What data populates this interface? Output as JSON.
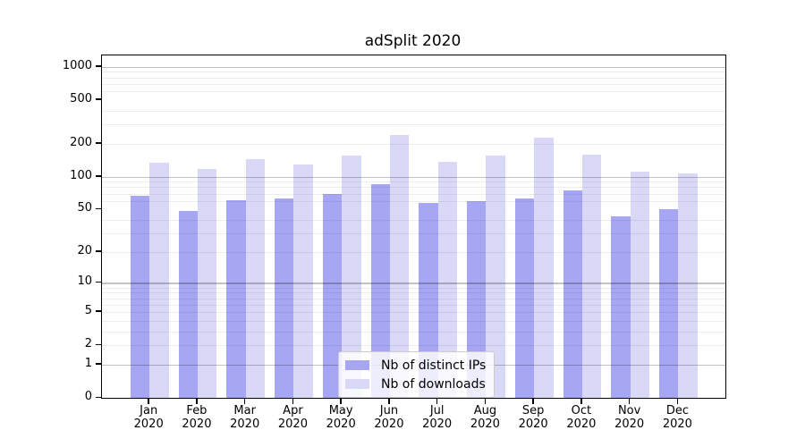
{
  "background": "#ffffff",
  "chart_data": {
    "type": "bar",
    "title": "adSplit 2020",
    "categories": [
      "Jan",
      "Feb",
      "Mar",
      "Apr",
      "May",
      "Jun",
      "Jul",
      "Aug",
      "Sep",
      "Oct",
      "Nov",
      "Dec"
    ],
    "category_year": "2020",
    "series": [
      {
        "name": "Nb of distinct IPs",
        "color": "#a6a6f2",
        "values": [
          67,
          48,
          61,
          63,
          70,
          85,
          57,
          60,
          63,
          75,
          43,
          50
        ]
      },
      {
        "name": "Nb of downloads",
        "color": "#d9d9f7",
        "values": [
          134,
          118,
          146,
          130,
          155,
          242,
          137,
          155,
          228,
          158,
          111,
          107
        ]
      }
    ],
    "yscale": "log1p",
    "ylim": [
      0,
      1267
    ],
    "y_ticks": [
      1000,
      500,
      200,
      100,
      50,
      20,
      10,
      5,
      2,
      1,
      0
    ],
    "y_major_gridlines": [
      1,
      10,
      100,
      1000
    ],
    "y_minor_gridlines": [
      2,
      3,
      4,
      5,
      6,
      7,
      8,
      9,
      20,
      30,
      40,
      60,
      70,
      80,
      90,
      200,
      300,
      400,
      600,
      700,
      800,
      900
    ],
    "grid": true,
    "legend_position": "inside-bottom-center"
  },
  "colors": {
    "axis": "#000000",
    "major_grid": "rgba(0,0,0,0.24)",
    "minor_grid": "rgba(0,0,0,0.07)",
    "text": "#000000"
  }
}
